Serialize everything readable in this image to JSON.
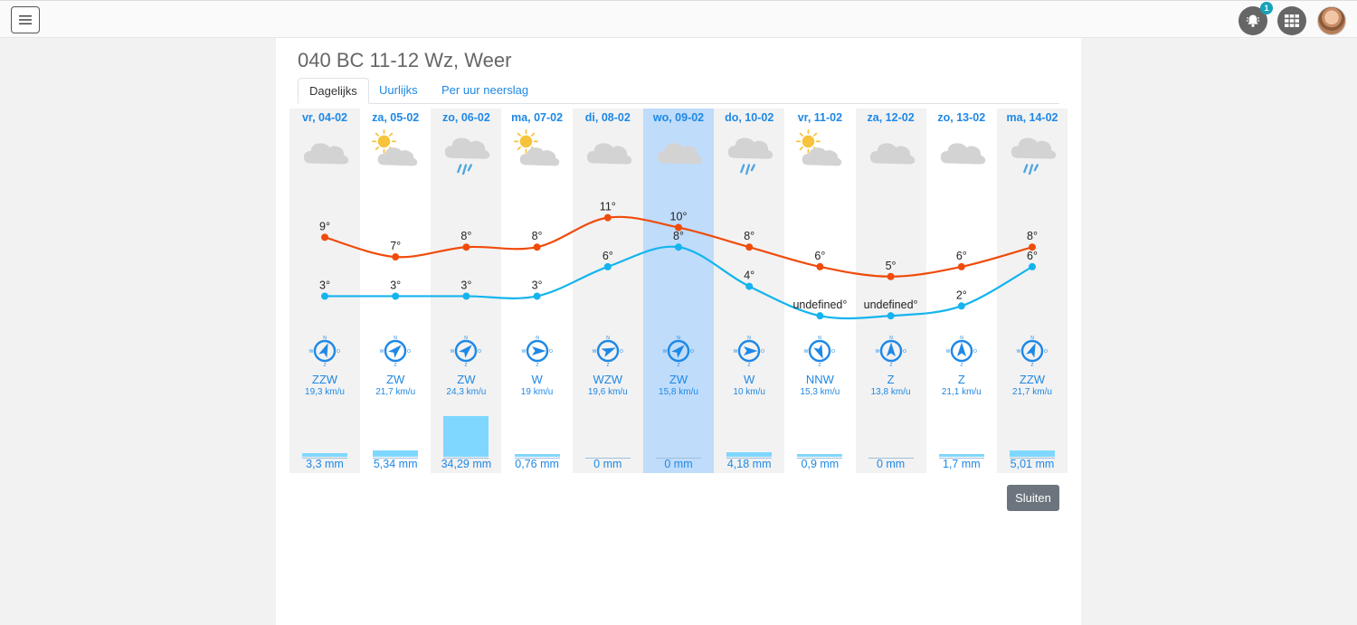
{
  "topbar": {
    "menu_icon": "hamburger-icon",
    "notifications": {
      "icon": "bell-icon",
      "count": "1"
    },
    "apps_icon": "grid-icon",
    "avatar": "user-avatar"
  },
  "modal": {
    "title": "040 BC 11-12 Wz, Weer",
    "tabs": [
      {
        "label": "Dagelijks",
        "active": true
      },
      {
        "label": "Uurlijks",
        "active": false
      },
      {
        "label": "Per uur neerslag",
        "active": false
      }
    ],
    "close_label": "Sluiten"
  },
  "colors": {
    "max_line": "#f04b0b",
    "min_line": "#14b4ee",
    "accent": "#1e88e5",
    "rain": "#7fd7ff",
    "selected": "#bfdcfb"
  },
  "days": [
    {
      "date": "vr, 04-02",
      "icon": "cloud",
      "max": 9,
      "max_label": "9°",
      "min": 3,
      "min_label": "3°",
      "wind_dir": "ZZW",
      "wind_speed": "19,3 km/u",
      "rain_mm": 3.3,
      "rain_label": "3,3 mm"
    },
    {
      "date": "za, 05-02",
      "icon": "sun-cloud",
      "max": 7,
      "max_label": "7°",
      "min": 3,
      "min_label": "3°",
      "wind_dir": "ZW",
      "wind_speed": "21,7 km/u",
      "rain_mm": 5.34,
      "rain_label": "5,34 mm"
    },
    {
      "date": "zo, 06-02",
      "icon": "cloud-rain",
      "max": 8,
      "max_label": "8°",
      "min": 3,
      "min_label": "3°",
      "wind_dir": "ZW",
      "wind_speed": "24,3 km/u",
      "rain_mm": 34.29,
      "rain_label": "34,29 mm"
    },
    {
      "date": "ma, 07-02",
      "icon": "sun-cloud",
      "max": 8,
      "max_label": "8°",
      "min": 3,
      "min_label": "3°",
      "wind_dir": "W",
      "wind_speed": "19 km/u",
      "rain_mm": 0.76,
      "rain_label": "0,76 mm"
    },
    {
      "date": "di, 08-02",
      "icon": "cloud",
      "max": 11,
      "max_label": "11°",
      "min": 6,
      "min_label": "6°",
      "wind_dir": "WZW",
      "wind_speed": "19,6 km/u",
      "rain_mm": 0,
      "rain_label": "0 mm"
    },
    {
      "date": "wo, 09-02",
      "icon": "cloud",
      "max": 10,
      "max_label": "10°",
      "min": 8,
      "min_label": "8°",
      "wind_dir": "ZW",
      "wind_speed": "15,8 km/u",
      "rain_mm": 0,
      "rain_label": "0 mm",
      "selected": true
    },
    {
      "date": "do, 10-02",
      "icon": "cloud-rain",
      "max": 8,
      "max_label": "8°",
      "min": 4,
      "min_label": "4°",
      "wind_dir": "W",
      "wind_speed": "10 km/u",
      "rain_mm": 4.18,
      "rain_label": "4,18 mm"
    },
    {
      "date": "vr, 11-02",
      "icon": "sun-cloud",
      "max": 6,
      "max_label": "6°",
      "min": 1,
      "min_label": "undefined°",
      "wind_dir": "NNW",
      "wind_speed": "15,3 km/u",
      "rain_mm": 0.9,
      "rain_label": "0,9 mm"
    },
    {
      "date": "za, 12-02",
      "icon": "cloud",
      "max": 5,
      "max_label": "5°",
      "min": 1,
      "min_label": "undefined°",
      "wind_dir": "Z",
      "wind_speed": "13,8 km/u",
      "rain_mm": 0,
      "rain_label": "0 mm"
    },
    {
      "date": "zo, 13-02",
      "icon": "cloud",
      "max": 6,
      "max_label": "6°",
      "min": 2,
      "min_label": "2°",
      "wind_dir": "Z",
      "wind_speed": "21,1 km/u",
      "rain_mm": 1.7,
      "rain_label": "1,7 mm"
    },
    {
      "date": "ma, 14-02",
      "icon": "cloud-rain",
      "max": 8,
      "max_label": "8°",
      "min": 6,
      "min_label": "6°",
      "wind_dir": "ZZW",
      "wind_speed": "21,7 km/u",
      "rain_mm": 5.01,
      "rain_label": "5,01 mm"
    }
  ],
  "chart_data": {
    "type": "line",
    "categories": [
      "vr, 04-02",
      "za, 05-02",
      "zo, 06-02",
      "ma, 07-02",
      "di, 08-02",
      "wo, 09-02",
      "do, 10-02",
      "vr, 11-02",
      "za, 12-02",
      "zo, 13-02",
      "ma, 14-02"
    ],
    "series": [
      {
        "values": [
          9,
          7,
          8,
          8,
          11,
          10,
          8,
          6,
          5,
          6,
          8
        ]
      },
      {
        "values": [
          3,
          3,
          3,
          3,
          6,
          8,
          4,
          null,
          null,
          2,
          6
        ]
      }
    ]
  }
}
